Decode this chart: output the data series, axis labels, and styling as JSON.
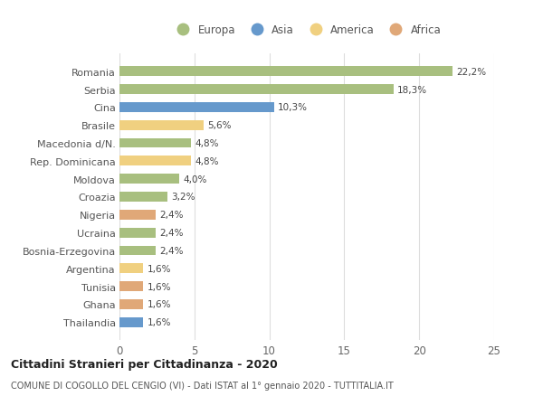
{
  "countries": [
    "Romania",
    "Serbia",
    "Cina",
    "Brasile",
    "Macedonia d/N.",
    "Rep. Dominicana",
    "Moldova",
    "Croazia",
    "Nigeria",
    "Ucraina",
    "Bosnia-Erzegovina",
    "Argentina",
    "Tunisia",
    "Ghana",
    "Thailandia"
  ],
  "values": [
    22.2,
    18.3,
    10.3,
    5.6,
    4.8,
    4.8,
    4.0,
    3.2,
    2.4,
    2.4,
    2.4,
    1.6,
    1.6,
    1.6,
    1.6
  ],
  "labels": [
    "22,2%",
    "18,3%",
    "10,3%",
    "5,6%",
    "4,8%",
    "4,8%",
    "4,0%",
    "3,2%",
    "2,4%",
    "2,4%",
    "2,4%",
    "1,6%",
    "1,6%",
    "1,6%",
    "1,6%"
  ],
  "continents": [
    "Europa",
    "Europa",
    "Asia",
    "America",
    "Europa",
    "America",
    "Europa",
    "Europa",
    "Africa",
    "Europa",
    "Europa",
    "America",
    "Africa",
    "Africa",
    "Asia"
  ],
  "continent_colors": {
    "Europa": "#a8bf7f",
    "Asia": "#6699cc",
    "America": "#f0d080",
    "Africa": "#e0a878"
  },
  "legend_order": [
    "Europa",
    "Asia",
    "America",
    "Africa"
  ],
  "title": "Cittadini Stranieri per Cittadinanza - 2020",
  "subtitle": "COMUNE DI COGOLLO DEL CENGIO (VI) - Dati ISTAT al 1° gennaio 2020 - TUTTITALIA.IT",
  "xlim": [
    0,
    25
  ],
  "xticks": [
    0,
    5,
    10,
    15,
    20,
    25
  ],
  "background_color": "#ffffff",
  "grid_color": "#dddddd",
  "bar_height": 0.55
}
